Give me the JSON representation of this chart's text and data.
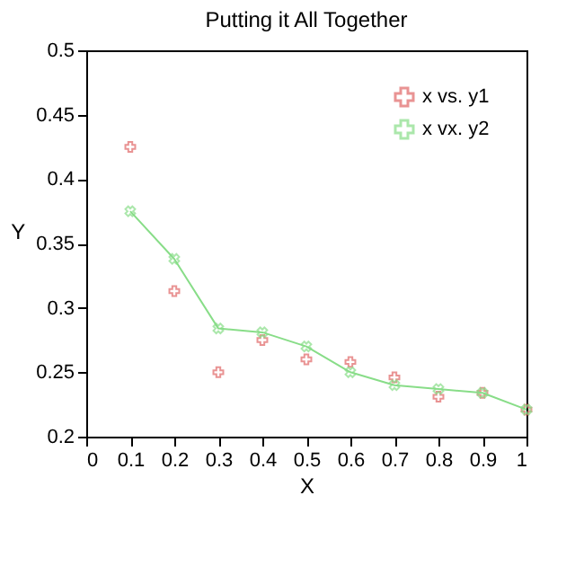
{
  "chart_data": {
    "type": "scatter",
    "title": "Putting it All Together",
    "xlabel": "X",
    "ylabel": "Y",
    "x": [
      0.1,
      0.2,
      0.3,
      0.4,
      0.5,
      0.6,
      0.7,
      0.8,
      0.9,
      1.0
    ],
    "series": [
      {
        "name": "x vs. y1",
        "marker": "cross",
        "color": "#e06666",
        "values": [
          0.425,
          0.313,
          0.25,
          0.275,
          0.26,
          0.258,
          0.246,
          0.231,
          0.234,
          0.221
        ]
      },
      {
        "name": "x vx. y2",
        "type": "line",
        "marker": "cross",
        "color": "#88dd88",
        "values": [
          0.375,
          0.338,
          0.284,
          0.281,
          0.27,
          0.25,
          0.24,
          0.237,
          0.234,
          0.221
        ]
      }
    ],
    "xlim": [
      0,
      1
    ],
    "xticks": [
      0,
      0.1,
      0.2,
      0.3,
      0.4,
      0.5,
      0.6,
      0.7,
      0.8,
      0.9,
      1
    ],
    "ylim": [
      0.2,
      0.5
    ],
    "yticks": [
      0.2,
      0.25,
      0.3,
      0.35,
      0.4,
      0.45,
      0.5
    ],
    "grid": false,
    "legend": "top right"
  }
}
